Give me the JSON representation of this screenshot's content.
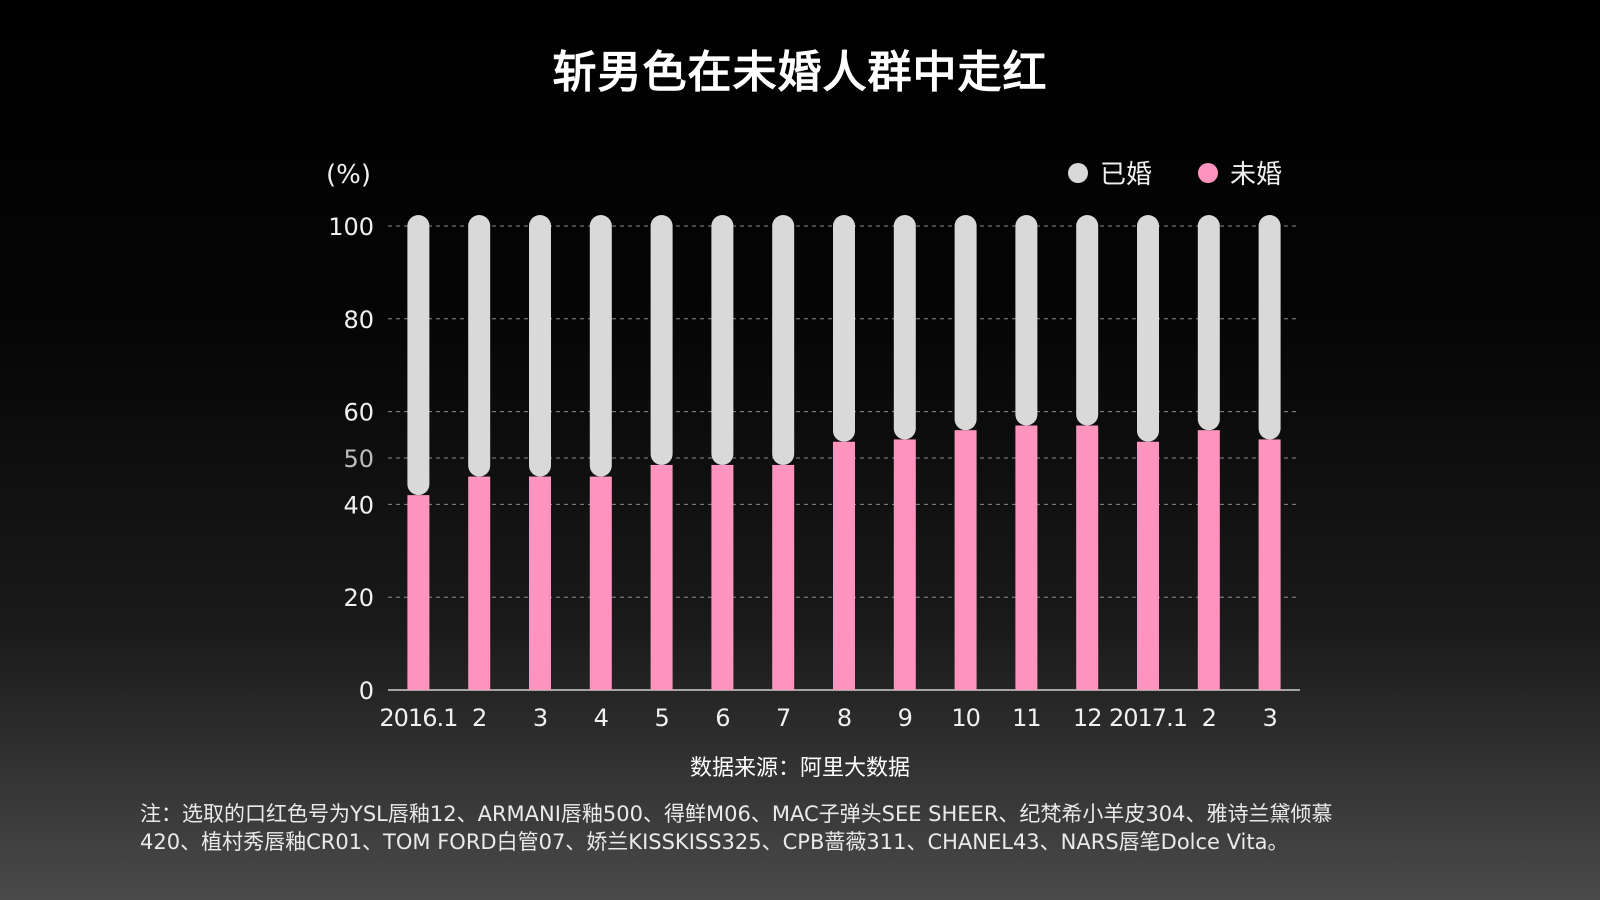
{
  "title": "斩男色在未婚人群中走红",
  "source": "数据来源：阿里大数据",
  "note_line1": "注：选取的口红色号为YSL唇釉12、ARMANI唇釉500、得鲜M06、MAC子弹头SEE SHEER、纪梵希小羊皮304、雅诗兰黛倾慕",
  "note_line2": "420、植村秀唇釉CR01、TOM FORD白管07、娇兰KISSKISS325、CPB蔷薇311、CHANEL43、NARS唇笔Dolce Vita。",
  "colors": {
    "married": "#d9d9d9",
    "unmarried": "#ff94bf",
    "grid": "#8c8c8c"
  },
  "chart_data": {
    "type": "bar",
    "stacked": true,
    "title": "斩男色在未婚人群中走红",
    "ylabel": "(%)",
    "ylim": [
      0,
      100
    ],
    "yticks": [
      "0",
      "20",
      "40",
      "50",
      "60",
      "80",
      "100"
    ],
    "categories": [
      "2016.1",
      "2",
      "3",
      "4",
      "5",
      "6",
      "7",
      "8",
      "9",
      "10",
      "11",
      "12",
      "2017.1",
      "2",
      "3"
    ],
    "series": [
      {
        "name": "未婚",
        "values": [
          42,
          46,
          46,
          46,
          48.5,
          48.5,
          48.5,
          53.5,
          54,
          56,
          57,
          57,
          53.5,
          56,
          54
        ]
      },
      {
        "name": "已婚",
        "values": [
          58,
          54,
          54,
          54,
          51.5,
          51.5,
          51.5,
          46.5,
          46,
          44,
          43,
          43,
          46.5,
          44,
          46
        ]
      }
    ],
    "legend_position": "top-right",
    "legend": [
      "已婚",
      "未婚"
    ],
    "grid": true
  }
}
